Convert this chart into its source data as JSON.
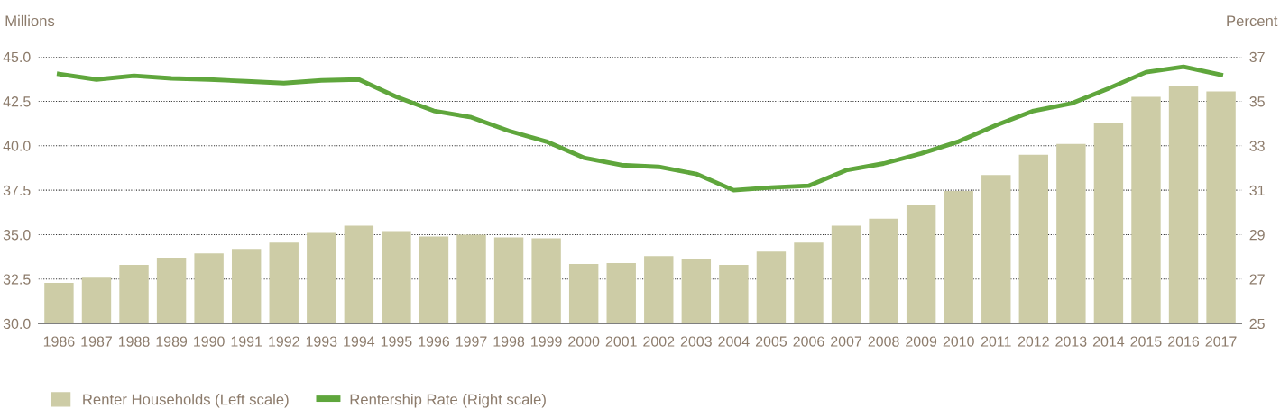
{
  "chart_data": {
    "type": "bar",
    "categories": [
      "1986",
      "1987",
      "1988",
      "1989",
      "1990",
      "1991",
      "1992",
      "1993",
      "1994",
      "1995",
      "1996",
      "1997",
      "1998",
      "1999",
      "2000",
      "2001",
      "2002",
      "2003",
      "2004",
      "2005",
      "2006",
      "2007",
      "2008",
      "2009",
      "2010",
      "2011",
      "2012",
      "2013",
      "2014",
      "2015",
      "2016",
      "2017"
    ],
    "ylabel": "Millions",
    "y2label": "Percent",
    "ylim": [
      30,
      45
    ],
    "yticks": [
      {
        "value": 30,
        "label": "30.0"
      },
      {
        "value": 32.5,
        "label": "32.5"
      },
      {
        "value": 35,
        "label": "35.0"
      },
      {
        "value": 37.5,
        "label": "37.5"
      },
      {
        "value": 40,
        "label": "40.0"
      },
      {
        "value": 42.5,
        "label": "42.5"
      },
      {
        "value": 45,
        "label": "45.0"
      }
    ],
    "y2lim": [
      25,
      37
    ],
    "y2ticks": [
      25,
      27,
      29,
      31,
      33,
      35,
      37
    ],
    "grid": "y",
    "legend": "bottom left",
    "series": [
      {
        "name": "Renter Households (Left scale)",
        "color": "#cdcca6",
        "values": [
          32.28,
          32.58,
          33.3,
          33.7,
          33.95,
          34.2,
          34.55,
          35.1,
          35.5,
          35.2,
          34.9,
          35.0,
          34.85,
          34.8,
          33.35,
          33.4,
          33.8,
          33.65,
          33.3,
          34.05,
          34.55,
          35.5,
          35.9,
          36.65,
          37.45,
          38.35,
          39.5,
          40.1,
          41.3,
          42.75,
          43.35,
          43.05
        ]
      },
      {
        "name": "Rentership Rate (Right scale)",
        "type": "line",
        "axis": "y2",
        "color": "#5fa63c",
        "values": [
          36.23,
          35.98,
          36.15,
          36.03,
          35.98,
          35.9,
          35.82,
          35.94,
          35.98,
          35.2,
          34.57,
          34.28,
          33.67,
          33.19,
          32.46,
          32.13,
          32.05,
          31.73,
          31.0,
          31.12,
          31.2,
          31.9,
          32.2,
          32.65,
          33.19,
          33.92,
          34.57,
          34.9,
          35.58,
          36.31,
          36.55,
          36.19
        ]
      }
    ]
  }
}
